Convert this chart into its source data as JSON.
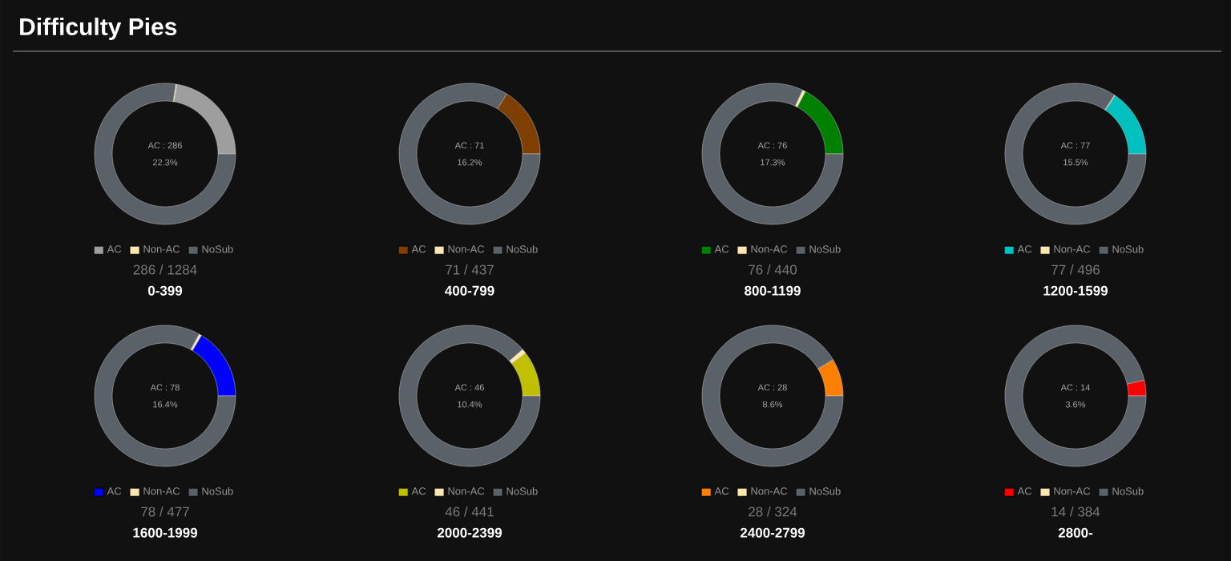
{
  "chart_data": [
    {
      "type": "other",
      "title": "Difficulty Pies"
    },
    {
      "type": "donut",
      "title": "0-399",
      "categories": [
        "AC",
        "Non-AC",
        "NoSub"
      ],
      "values": [
        22.3,
        0.3,
        77.4
      ],
      "colors": [
        "#9e9e9e",
        "#fde7b0",
        "#5b6169"
      ],
      "legend": "bottom",
      "annotations": [
        "AC : 286",
        "22.3%",
        "286 / 1284"
      ]
    },
    {
      "type": "donut",
      "title": "400-799",
      "categories": [
        "AC",
        "Non-AC",
        "NoSub"
      ],
      "values": [
        16.2,
        0,
        83.8
      ],
      "colors": [
        "#7f3f00",
        "#fde7b0",
        "#5b6169"
      ],
      "legend": "bottom",
      "annotations": [
        "AC : 71",
        "16.2%",
        "71 / 437"
      ]
    },
    {
      "type": "donut",
      "title": "800-1199",
      "categories": [
        "AC",
        "Non-AC",
        "NoSub"
      ],
      "values": [
        17.3,
        0.7,
        82.0
      ],
      "colors": [
        "#008000",
        "#fde7b0",
        "#5b6169"
      ],
      "legend": "bottom",
      "annotations": [
        "AC : 76",
        "17.3%",
        "76 / 440"
      ]
    },
    {
      "type": "donut",
      "title": "1200-1599",
      "categories": [
        "AC",
        "Non-AC",
        "NoSub"
      ],
      "values": [
        15.5,
        0.2,
        84.3
      ],
      "colors": [
        "#00c0c0",
        "#fde7b0",
        "#5b6169"
      ],
      "legend": "bottom",
      "annotations": [
        "AC : 77",
        "15.5%",
        "77 / 496"
      ]
    },
    {
      "type": "donut",
      "title": "1600-1999",
      "categories": [
        "AC",
        "Non-AC",
        "NoSub"
      ],
      "values": [
        16.4,
        0.6,
        83.0
      ],
      "colors": [
        "#0000ff",
        "#fde7b0",
        "#5b6169"
      ],
      "legend": "bottom",
      "annotations": [
        "AC : 78",
        "16.4%",
        "78 / 477"
      ]
    },
    {
      "type": "donut",
      "title": "2000-2399",
      "categories": [
        "AC",
        "Non-AC",
        "NoSub"
      ],
      "values": [
        10.4,
        1.1,
        88.5
      ],
      "colors": [
        "#c0c000",
        "#fde7b0",
        "#5b6169"
      ],
      "legend": "bottom",
      "annotations": [
        "AC : 46",
        "10.4%",
        "46 / 441"
      ]
    },
    {
      "type": "donut",
      "title": "2400-2799",
      "categories": [
        "AC",
        "Non-AC",
        "NoSub"
      ],
      "values": [
        8.6,
        0,
        91.4
      ],
      "colors": [
        "#ff8000",
        "#fde7b0",
        "#5b6169"
      ],
      "legend": "bottom",
      "annotations": [
        "AC : 28",
        "8.6%",
        "28 / 324"
      ]
    },
    {
      "type": "donut",
      "title": "2800-",
      "categories": [
        "AC",
        "Non-AC",
        "NoSub"
      ],
      "values": [
        3.6,
        0,
        96.4
      ],
      "colors": [
        "#ff0000",
        "#fde7b0",
        "#5b6169"
      ],
      "legend": "bottom",
      "annotations": [
        "AC : 14",
        "3.6%",
        "14 / 384"
      ]
    }
  ]
}
